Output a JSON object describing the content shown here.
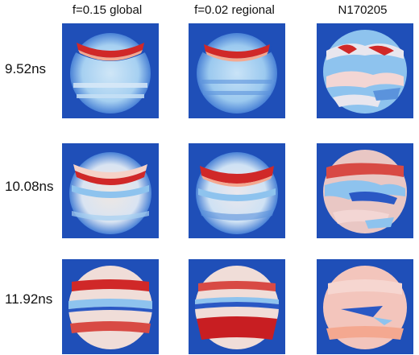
{
  "columns": [
    {
      "label": "f=0.15 global"
    },
    {
      "label": "f=0.02 regional"
    },
    {
      "label": "N170205"
    }
  ],
  "rows": [
    {
      "label": "9.52ns"
    },
    {
      "label": "10.08ns"
    },
    {
      "label": "11.92ns"
    }
  ],
  "colors": {
    "background_blue": "#1f4fb8",
    "deep_blue": "#2a58c4",
    "light_blue": "#8ec3ee",
    "pale": "#e8e6ee",
    "red": "#d02828",
    "salmon": "#f4a890"
  }
}
